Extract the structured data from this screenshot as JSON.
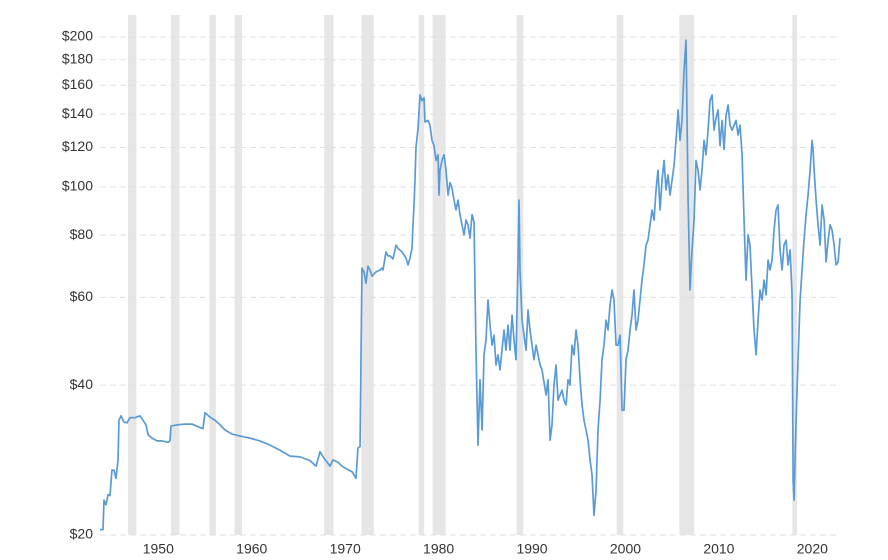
{
  "chart_data": {
    "type": "line",
    "color": "#5b9bd5",
    "recession_color": "#e6e6e6",
    "yscale": "log",
    "grid": true,
    "xlim": [
      1945.9,
      2025.1
    ],
    "ylim": [
      20,
      200
    ],
    "xticks": [
      1950,
      1960,
      1970,
      1980,
      1990,
      2000,
      2010,
      2020
    ],
    "yticks": [
      {
        "value": 20,
        "label": "$20"
      },
      {
        "value": 40,
        "label": "$40"
      },
      {
        "value": 60,
        "label": "$60"
      },
      {
        "value": 80,
        "label": "$80"
      },
      {
        "value": 100,
        "label": "$100"
      },
      {
        "value": 120,
        "label": "$120"
      },
      {
        "value": 140,
        "label": "$140"
      },
      {
        "value": 160,
        "label": "$160"
      },
      {
        "value": 180,
        "label": "$180"
      },
      {
        "value": 200,
        "label": "$200"
      }
    ],
    "recessions": [
      [
        1948.9,
        1949.8
      ],
      [
        1953.5,
        1954.4
      ],
      [
        1957.6,
        1958.3
      ],
      [
        1960.3,
        1961.1
      ],
      [
        1969.9,
        1970.9
      ],
      [
        1973.9,
        1975.2
      ],
      [
        1980.0,
        1980.6
      ],
      [
        1981.5,
        1982.9
      ],
      [
        1990.5,
        1991.2
      ],
      [
        2001.2,
        2001.9
      ],
      [
        2007.9,
        2009.5
      ],
      [
        2020.0,
        2020.5
      ]
    ],
    "x": [
      1945.9,
      1946.22,
      1946.33,
      1946.54,
      1946.76,
      1946.97,
      1947.18,
      1947.4,
      1947.61,
      1947.83,
      1947.93,
      1948.15,
      1948.47,
      1948.79,
      1949.11,
      1949.65,
      1950.18,
      1950.5,
      1950.82,
      1951.04,
      1951.47,
      1952.0,
      1952.54,
      1953.18,
      1953.39,
      1953.5,
      1954.25,
      1955.0,
      1955.75,
      1956.39,
      1956.92,
      1957.14,
      1957.67,
      1958.21,
      1958.74,
      1959.28,
      1960.03,
      1960.88,
      1961.95,
      1963.02,
      1964.1,
      1965.17,
      1966.24,
      1967.31,
      1968.38,
      1969.02,
      1969.45,
      1969.88,
      1970.52,
      1970.84,
      1971.37,
      1971.8,
      1972.34,
      1972.87,
      1973.3,
      1973.51,
      1973.73,
      1973.94,
      1974.16,
      1974.37,
      1974.58,
      1974.8,
      1975.01,
      1975.44,
      1975.87,
      1976.08,
      1976.19,
      1976.51,
      1976.72,
      1976.94,
      1977.26,
      1977.58,
      1977.79,
      1978.22,
      1978.65,
      1978.87,
      1979.08,
      1979.29,
      1979.4,
      1979.51,
      1979.61,
      1979.72,
      1979.94,
      1980.15,
      1980.36,
      1980.58,
      1980.68,
      1981.01,
      1981.22,
      1981.43,
      1981.65,
      1981.86,
      1982.08,
      1982.18,
      1982.29,
      1982.5,
      1982.72,
      1982.93,
      1983.15,
      1983.36,
      1983.57,
      1983.79,
      1984.0,
      1984.22,
      1984.43,
      1984.64,
      1984.86,
      1985.07,
      1985.29,
      1985.5,
      1985.72,
      1985.93,
      1986.14,
      1986.36,
      1986.57,
      1986.79,
      1987.0,
      1987.21,
      1987.43,
      1987.64,
      1987.86,
      1988.07,
      1988.28,
      1988.5,
      1988.71,
      1989.14,
      1989.35,
      1989.57,
      1989.78,
      1990.0,
      1990.21,
      1990.42,
      1990.64,
      1990.75,
      1990.85,
      1991.07,
      1991.28,
      1991.5,
      1991.71,
      1991.92,
      1992.14,
      1992.35,
      1992.57,
      1992.78,
      1993.0,
      1993.21,
      1993.64,
      1993.85,
      1994.07,
      1994.28,
      1994.49,
      1994.71,
      1994.92,
      1995.35,
      1995.56,
      1995.78,
      1995.99,
      1996.2,
      1996.42,
      1996.63,
      1996.85,
      1997.06,
      1997.28,
      1997.49,
      1997.7,
      1997.92,
      1998.13,
      1998.35,
      1998.56,
      1998.77,
      1998.99,
      1999.2,
      1999.42,
      1999.63,
      1999.84,
      2000.06,
      2000.27,
      2000.49,
      2000.7,
      2000.91,
      2001.13,
      2001.34,
      2001.56,
      2001.77,
      2001.98,
      2002.2,
      2002.41,
      2002.63,
      2002.84,
      2003.05,
      2003.27,
      2003.48,
      2003.7,
      2003.91,
      2004.12,
      2004.34,
      2004.55,
      2004.77,
      2004.98,
      2005.2,
      2005.41,
      2005.62,
      2005.84,
      2006.05,
      2006.27,
      2006.48,
      2006.69,
      2006.91,
      2007.12,
      2007.34,
      2007.55,
      2007.77,
      2007.98,
      2008.19,
      2008.41,
      2008.62,
      2008.84,
      2009.05,
      2009.26,
      2009.48,
      2009.69,
      2009.91,
      2010.12,
      2010.33,
      2010.55,
      2010.76,
      2010.98,
      2011.19,
      2011.41,
      2011.62,
      2011.83,
      2012.05,
      2012.26,
      2012.48,
      2012.69,
      2012.9,
      2013.12,
      2013.33,
      2013.55,
      2013.97,
      2014.19,
      2014.4,
      2014.62,
      2014.83,
      2015.04,
      2015.26,
      2015.47,
      2015.69,
      2015.9,
      2016.12,
      2016.33,
      2016.54,
      2016.76,
      2016.97,
      2017.19,
      2017.4,
      2017.61,
      2017.83,
      2018.04,
      2018.26,
      2018.47,
      2018.68,
      2018.9,
      2019.11,
      2019.33,
      2019.54,
      2019.76,
      2019.97,
      2020.08,
      2020.18,
      2020.4,
      2020.61,
      2020.83,
      2021.04,
      2021.25,
      2021.47,
      2021.68,
      2021.9,
      2022.11,
      2022.22,
      2022.33,
      2022.54,
      2022.75,
      2022.97,
      2023.18,
      2023.4,
      2023.61,
      2023.83,
      2024.04,
      2024.25,
      2024.47,
      2024.68,
      2024.9,
      2025.1
    ],
    "values": [
      20.5,
      20.5,
      23.5,
      23.0,
      24.1,
      24.0,
      27.0,
      27.0,
      26.0,
      28.3,
      34.0,
      34.7,
      33.7,
      33.6,
      34.4,
      34.4,
      34.7,
      34.0,
      33.3,
      31.8,
      31.3,
      30.9,
      30.9,
      30.7,
      30.9,
      33.1,
      33.3,
      33.4,
      33.4,
      33.0,
      32.7,
      35.2,
      34.5,
      34.0,
      33.3,
      32.5,
      31.9,
      31.6,
      31.3,
      30.9,
      30.3,
      29.6,
      28.8,
      28.7,
      28.2,
      27.5,
      29.4,
      28.5,
      27.5,
      28.3,
      28.0,
      27.5,
      27.1,
      26.8,
      26.0,
      29.9,
      30.1,
      68.7,
      67.5,
      64.1,
      69.3,
      68.1,
      66.2,
      67.5,
      68.1,
      68.7,
      68.1,
      74.0,
      72.7,
      72.7,
      71.7,
      76.4,
      75.3,
      74.0,
      72.0,
      69.7,
      72.0,
      75.3,
      83.9,
      92.0,
      103,
      120,
      131,
      153,
      149,
      151,
      135,
      136,
      133,
      124,
      121,
      113,
      116,
      96.3,
      108,
      113,
      116,
      108,
      96.3,
      102,
      99.5,
      94.1,
      89.9,
      94.1,
      88,
      83.9,
      80.1,
      85.8,
      83.9,
      78.9,
      88,
      85.0,
      47.0,
      30.3,
      41.0,
      32.5,
      46.0,
      49.3,
      59.3,
      52.8,
      48.1,
      50.4,
      43.9,
      46.0,
      42.9,
      51.6,
      47.0,
      52.8,
      47.0,
      55.3,
      49.3,
      45.0,
      71.3,
      94.1,
      68.1,
      54.0,
      50.4,
      47.0,
      56.6,
      51.6,
      48.1,
      45.0,
      48.1,
      46.0,
      43.9,
      42.9,
      38.2,
      41.0,
      31.0,
      33.3,
      40.0,
      43.9,
      37.3,
      39.1,
      37.3,
      36.5,
      41.0,
      40.0,
      48.1,
      46.0,
      51.6,
      48.1,
      41.0,
      36.5,
      34.0,
      32.5,
      31.0,
      28.3,
      26.4,
      21.9,
      24.6,
      32.5,
      37.3,
      45.0,
      48.1,
      54.0,
      51.6,
      57.9,
      62.1,
      59.3,
      48.1,
      48.1,
      50.4,
      35.6,
      35.6,
      45.0,
      47.0,
      51.6,
      55.3,
      62.1,
      51.6,
      54.0,
      59.3,
      65.0,
      69.7,
      76.4,
      78.2,
      83.9,
      89.9,
      85.8,
      98.6,
      108,
      89.9,
      103,
      113,
      98.6,
      105.7,
      96.3,
      103,
      110.6,
      124,
      142.7,
      124,
      136,
      172,
      197,
      94.1,
      62.1,
      74.7,
      85.8,
      113,
      108,
      98.6,
      108,
      124,
      116,
      130,
      149,
      153,
      130,
      137.5,
      142.7,
      121,
      136,
      119,
      139,
      146,
      133,
      130,
      136,
      127.1,
      133,
      116,
      85.8,
      65.0,
      80.1,
      76.4,
      62.1,
      51.6,
      46.0,
      54.0,
      62.1,
      59.3,
      65.0,
      60.7,
      71.3,
      68.1,
      71.3,
      81.9,
      89.9,
      92.0,
      74.7,
      68.1,
      76.4,
      78.2,
      69.7,
      74.7,
      60.7,
      25.8,
      23.5,
      34.0,
      45.0,
      59.3,
      68.1,
      78.2,
      88,
      96.3,
      108,
      124,
      119,
      108,
      94.1,
      83.9,
      76.4,
      92.0,
      85.8,
      70.7,
      78.2,
      83.9,
      81.9,
      76.4,
      69.7,
      70.7,
      79.0
    ]
  }
}
